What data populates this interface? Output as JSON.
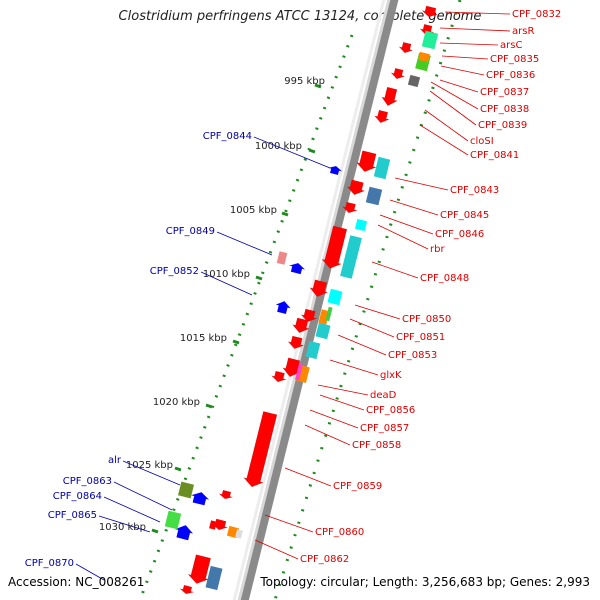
{
  "title": "Clostridium perfringens ATCC 13124, complete genome",
  "footer": {
    "accession": "Accession: NC_008261",
    "summary": "Topology: circular; Length: 3,256,683 bp; Genes: 2,993"
  },
  "colors": {
    "forward_label": "#dd0000",
    "reverse_label": "#0000aa",
    "forward_gene": "#ff0000",
    "reverse_gene": "#0000ff",
    "tick_dot": "#1f8a1f",
    "backbone": "#8a8a8a"
  },
  "kbp_ticks": [
    "995 kbp",
    "1000 kbp",
    "1005 kbp",
    "1010 kbp",
    "1015 kbp",
    "1020 kbp",
    "1025 kbp",
    "1030 kbp"
  ],
  "forward_genes": [
    "CPF_0832",
    "arsR",
    "arsC",
    "CPF_0835",
    "CPF_0836",
    "CPF_0837",
    "CPF_0838",
    "CPF_0839",
    "cloSI",
    "CPF_0841",
    "CPF_0843",
    "CPF_0845",
    "CPF_0846",
    "rbr",
    "CPF_0848",
    "CPF_0850",
    "CPF_0851",
    "CPF_0853",
    "glxK",
    "deaD",
    "CPF_0856",
    "CPF_0857",
    "CPF_0858",
    "CPF_0859",
    "CPF_0860",
    "CPF_0862"
  ],
  "reverse_genes": [
    "CPF_0844",
    "CPF_0849",
    "CPF_0852",
    "alr",
    "CPF_0863",
    "CPF_0864",
    "CPF_0865",
    "CPF_0870"
  ]
}
